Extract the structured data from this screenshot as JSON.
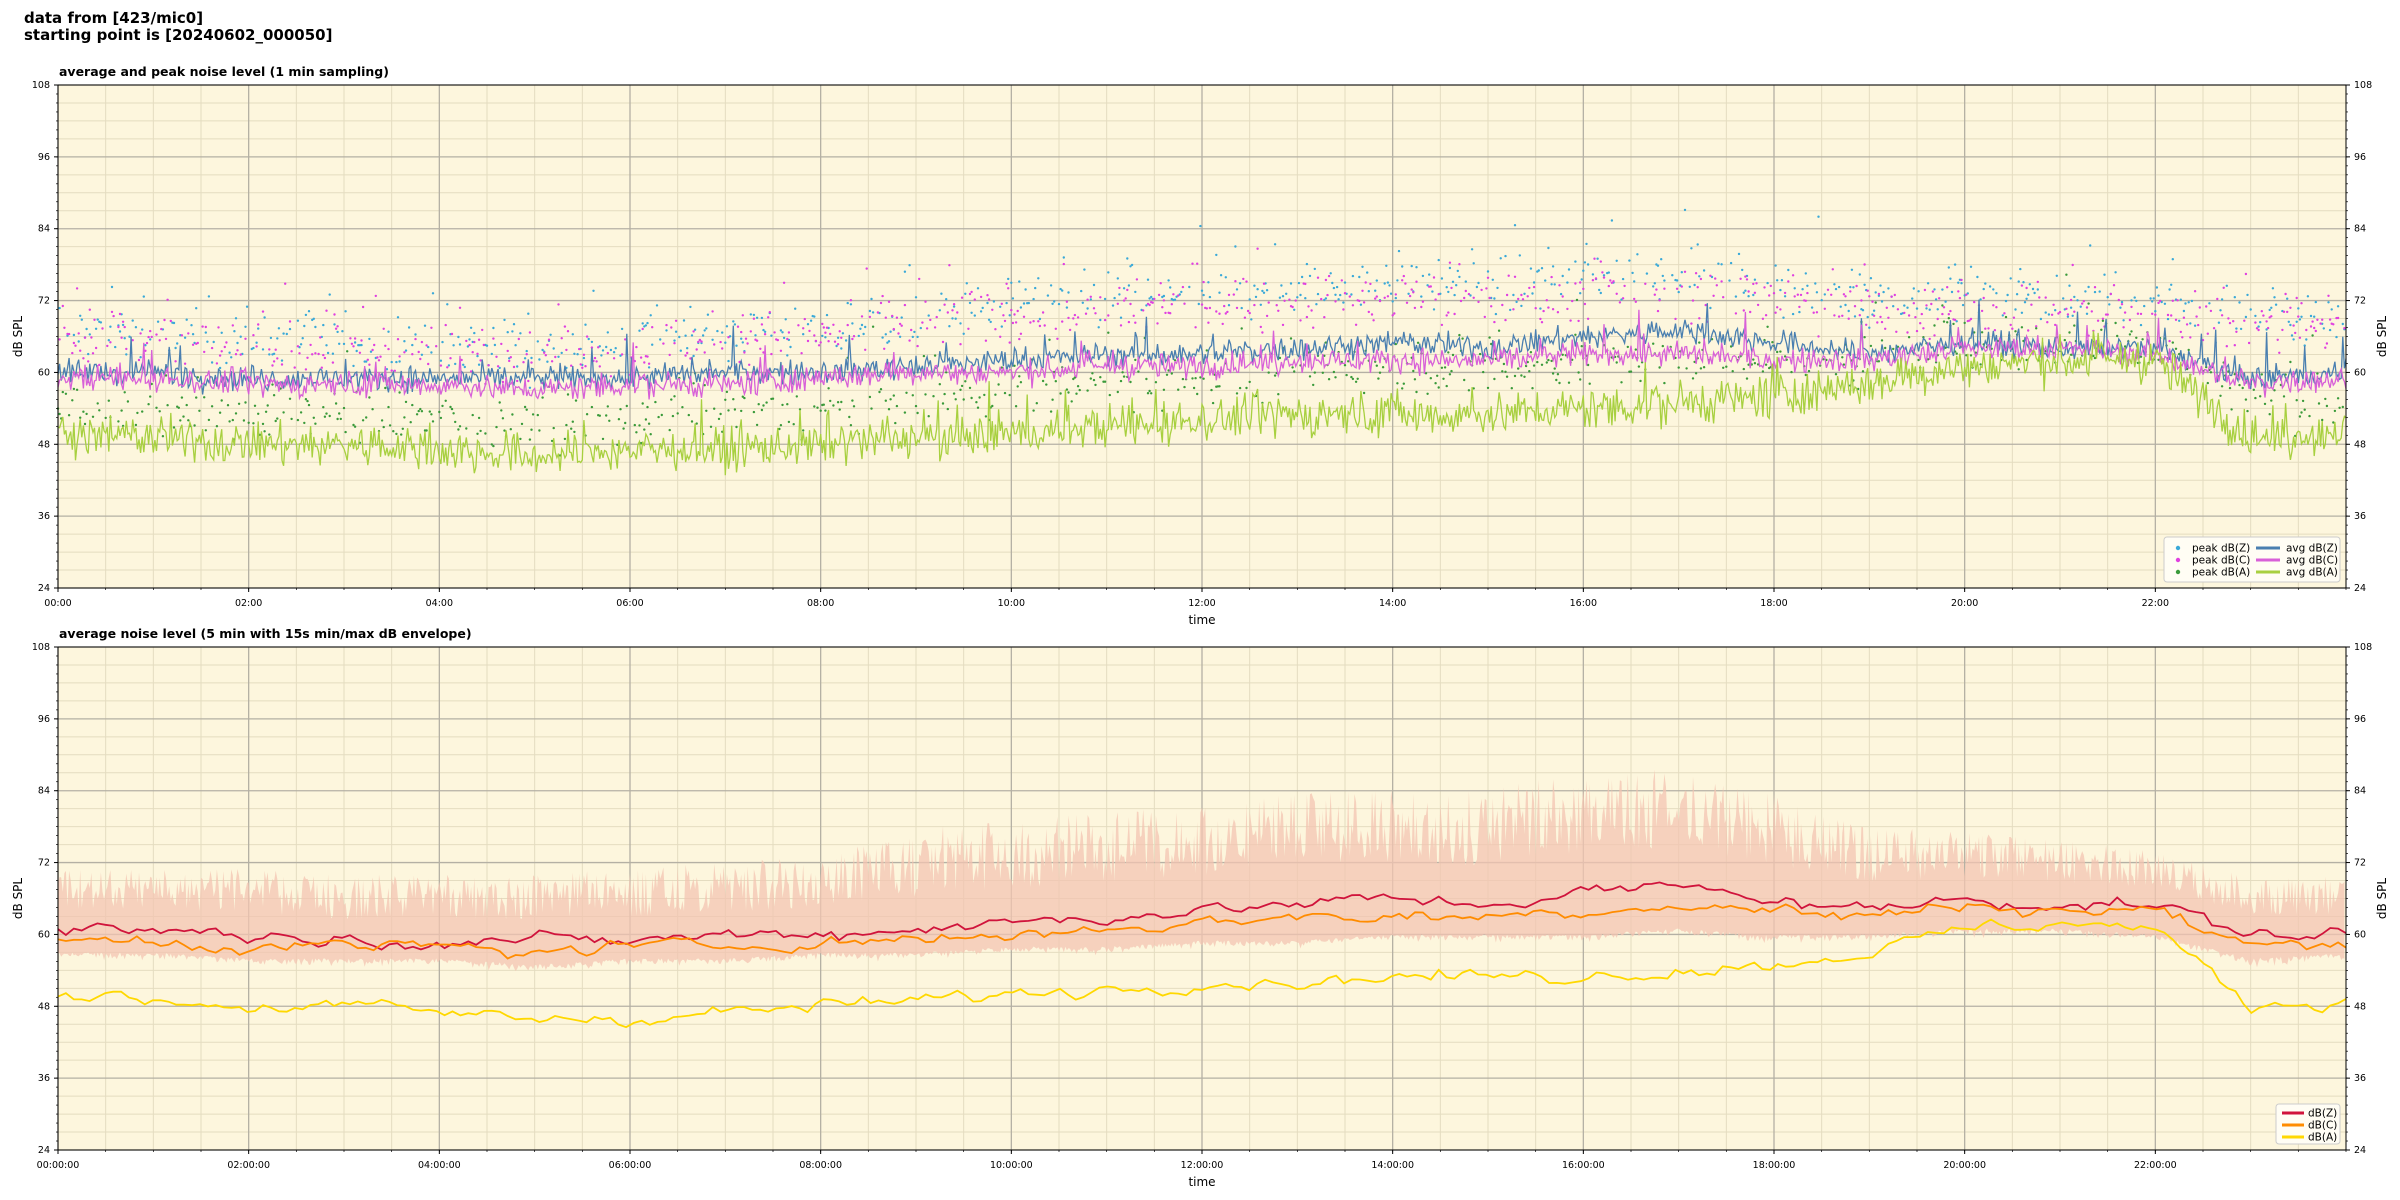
{
  "header": {
    "line1": "data from [423/mic0]",
    "line2": "starting point is [20240602_000050]"
  },
  "chart_data": [
    {
      "type": "line+scatter",
      "title": "average and peak noise level (1 min sampling)",
      "xlabel": "time",
      "ylabel": "dB SPL",
      "xlim": [
        "00:00",
        "24:00"
      ],
      "ylim": [
        24,
        108
      ],
      "yticks": [
        24,
        36,
        48,
        60,
        72,
        84,
        96,
        108
      ],
      "xticks": [
        "00:00",
        "02:00",
        "04:00",
        "06:00",
        "08:00",
        "10:00",
        "12:00",
        "14:00",
        "16:00",
        "18:00",
        "20:00",
        "22:00"
      ],
      "grid": true,
      "background": "#fdf6dd",
      "legend_position": "lower-right",
      "hours": [
        0,
        1,
        2,
        3,
        4,
        5,
        6,
        7,
        8,
        9,
        10,
        11,
        12,
        13,
        14,
        15,
        16,
        17,
        18,
        19,
        20,
        21,
        22,
        23,
        24
      ],
      "series": [
        {
          "name": "peak dB(Z)",
          "kind": "scatter",
          "color": "#3aa9d8",
          "values": [
            67,
            66,
            65,
            65,
            64,
            64,
            65,
            66,
            67,
            69,
            71,
            72,
            73,
            74,
            75,
            74,
            76,
            77,
            75,
            72,
            73,
            72,
            72,
            70,
            68
          ]
        },
        {
          "name": "peak dB(C)",
          "kind": "scatter",
          "color": "#e040e0",
          "values": [
            66,
            65,
            64,
            64,
            63,
            63,
            64,
            65,
            66,
            68,
            69,
            70,
            71,
            72,
            72,
            72,
            73,
            74,
            72,
            70,
            71,
            70,
            70,
            68,
            67
          ]
        },
        {
          "name": "peak dB(A)",
          "kind": "scatter",
          "color": "#3a9a3a",
          "values": [
            55,
            54,
            53,
            53,
            52,
            51,
            52,
            53,
            54,
            56,
            57,
            58,
            59,
            60,
            61,
            60,
            62,
            62,
            62,
            62,
            65,
            65,
            64,
            56,
            55
          ]
        },
        {
          "name": "avg dB(Z)",
          "kind": "line",
          "color": "#4a7fb0",
          "values": [
            60,
            60,
            59,
            59,
            59,
            59,
            59,
            60,
            60,
            61,
            62,
            63,
            63,
            64,
            65,
            64,
            66,
            67,
            65,
            63,
            65,
            64,
            64,
            59,
            60
          ]
        },
        {
          "name": "avg dB(C)",
          "kind": "line",
          "color": "#d860d8",
          "values": [
            59,
            59,
            58,
            58,
            58,
            57,
            58,
            58,
            59,
            60,
            60,
            61,
            61,
            62,
            62,
            62,
            63,
            63,
            62,
            62,
            64,
            64,
            63,
            58,
            59
          ]
        },
        {
          "name": "avg dB(A)",
          "kind": "line",
          "color": "#a8d040",
          "values": [
            50,
            49,
            48,
            48,
            47,
            46,
            47,
            47,
            48,
            49,
            50,
            51,
            52,
            53,
            53,
            53,
            54,
            55,
            56,
            58,
            61,
            62,
            62,
            49,
            50
          ]
        }
      ]
    },
    {
      "type": "line+area",
      "title": "average noise level (5 min with 15s min/max dB envelope)",
      "xlabel": "time",
      "ylabel": "dB SPL",
      "xlim": [
        "00:00:00",
        "24:00:00"
      ],
      "ylim": [
        24,
        108
      ],
      "yticks": [
        24,
        36,
        48,
        60,
        72,
        84,
        96,
        108
      ],
      "xticks": [
        "00:00:00",
        "02:00:00",
        "04:00:00",
        "06:00:00",
        "08:00:00",
        "10:00:00",
        "12:00:00",
        "14:00:00",
        "16:00:00",
        "18:00:00",
        "20:00:00",
        "22:00:00"
      ],
      "grid": true,
      "background": "#fdf6dd",
      "legend_position": "lower-right",
      "hours": [
        0,
        1,
        2,
        3,
        4,
        5,
        6,
        7,
        8,
        9,
        10,
        11,
        12,
        13,
        14,
        15,
        16,
        17,
        18,
        19,
        20,
        21,
        22,
        23,
        24
      ],
      "envelope": {
        "color": "#f3c4b2",
        "min": [
          57,
          57,
          56,
          56,
          56,
          55,
          56,
          56,
          57,
          57,
          58,
          58,
          59,
          59,
          60,
          60,
          60,
          61,
          60,
          60,
          61,
          61,
          60,
          56,
          57
        ],
        "max": [
          70,
          70,
          70,
          69,
          69,
          69,
          70,
          71,
          72,
          76,
          78,
          79,
          80,
          82,
          83,
          83,
          85,
          86,
          82,
          77,
          76,
          75,
          73,
          69,
          69
        ]
      },
      "series": [
        {
          "name": "dB(Z)",
          "kind": "line",
          "color": "#d0143c",
          "values": [
            61,
            61,
            60,
            59,
            59,
            59,
            59,
            60,
            60,
            61,
            62,
            63,
            64,
            65,
            66,
            65,
            67,
            68,
            66,
            64,
            66,
            65,
            65,
            60,
            60
          ]
        },
        {
          "name": "dB(C)",
          "kind": "line",
          "color": "#ff8c00",
          "values": [
            59,
            59,
            58,
            58,
            58,
            57,
            58,
            58,
            59,
            59,
            60,
            61,
            62,
            63,
            63,
            63,
            64,
            65,
            64,
            63,
            65,
            64,
            64,
            58,
            59
          ]
        },
        {
          "name": "dB(A)",
          "kind": "line",
          "color": "#ffd800",
          "values": [
            50,
            49,
            48,
            48,
            47,
            46,
            46,
            47,
            48,
            49,
            50,
            51,
            52,
            52,
            53,
            53,
            53,
            54,
            55,
            57,
            61,
            62,
            61,
            48,
            49
          ]
        }
      ]
    }
  ]
}
